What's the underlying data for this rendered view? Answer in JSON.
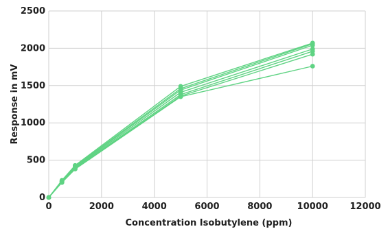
{
  "colors": {
    "series": "#5fd383",
    "grid": "#cfcfcf",
    "text": "#1f1f1f",
    "background": "#ffffff"
  },
  "chart_data": {
    "type": "line",
    "title": "",
    "xlabel": "Concentration Isobutylene (ppm)",
    "ylabel": "Response in mV",
    "xlim": [
      0,
      12000
    ],
    "ylim": [
      0,
      2500
    ],
    "xticks": [
      0,
      2000,
      4000,
      6000,
      8000,
      10000,
      12000
    ],
    "yticks": [
      0,
      500,
      1000,
      1500,
      2000,
      2500
    ],
    "xtick_labels": [
      "0",
      "2000",
      "4000",
      "6000",
      "8000",
      "10000",
      "12000"
    ],
    "ytick_labels": [
      "0",
      "500",
      "1000",
      "1500",
      "2000",
      "2500"
    ],
    "grid": true,
    "legend": "none",
    "x": [
      0,
      500,
      1000,
      5000,
      10000
    ],
    "series": [
      {
        "values": [
          0,
          230,
          430,
          1490,
          2070
        ]
      },
      {
        "values": [
          0,
          225,
          420,
          1460,
          2060
        ]
      },
      {
        "values": [
          0,
          220,
          410,
          1440,
          2040
        ]
      },
      {
        "values": [
          0,
          215,
          400,
          1410,
          1990
        ]
      },
      {
        "values": [
          0,
          210,
          390,
          1380,
          1960
        ]
      },
      {
        "values": [
          0,
          205,
          385,
          1360,
          1920
        ]
      },
      {
        "values": [
          0,
          200,
          380,
          1350,
          1760
        ]
      }
    ]
  }
}
